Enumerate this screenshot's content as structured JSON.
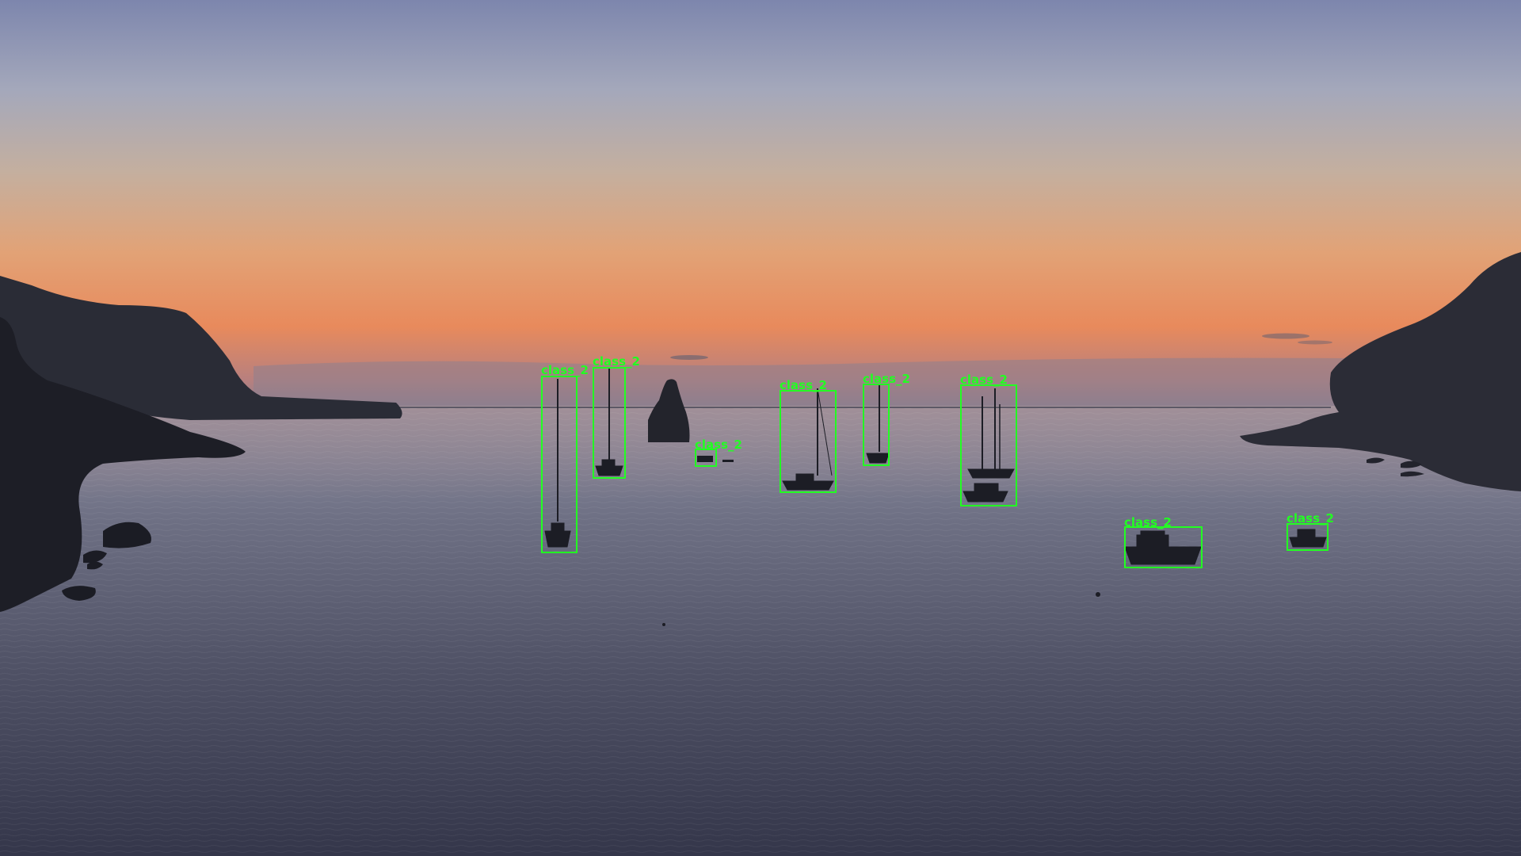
{
  "colors": {
    "box": "#22ff22",
    "label": "#22ff22"
  },
  "detections": [
    {
      "label": "class_2"
    },
    {
      "label": "class_2"
    },
    {
      "label": "class_2"
    },
    {
      "label": "class_2"
    },
    {
      "label": "class_2"
    },
    {
      "label": "class_2"
    },
    {
      "label": "class_2"
    },
    {
      "label": "class_2"
    }
  ]
}
